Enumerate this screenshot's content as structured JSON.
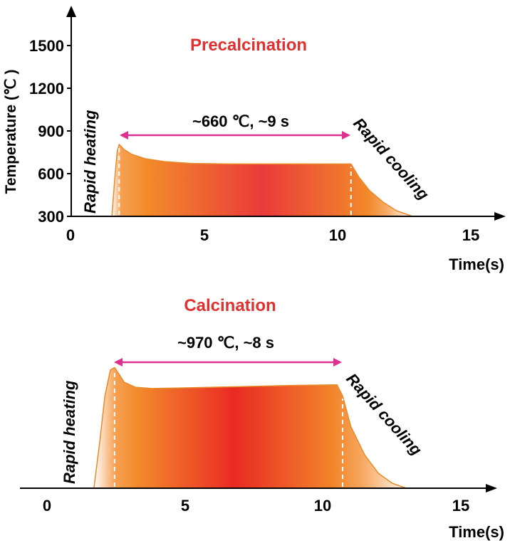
{
  "chart_data": [
    {
      "type": "area",
      "title": "Precalcination",
      "xlabel": "Time(s)",
      "ylabel": "Temperature (℃ )",
      "xlim": [
        0,
        16
      ],
      "ylim": [
        300,
        1700
      ],
      "x_ticks": [
        "0",
        "5",
        "10",
        "15"
      ],
      "y_ticks": [
        "300",
        "600",
        "900",
        "1200",
        "1500"
      ],
      "series": [
        {
          "x": [
            1.55,
            1.65,
            1.75,
            1.82,
            1.9,
            2.0,
            2.3,
            2.8,
            3.5,
            4.5,
            6,
            8,
            10,
            10.5,
            10.8,
            11.2,
            11.7,
            12.2,
            12.8
          ],
          "y": [
            300,
            550,
            760,
            805,
            790,
            770,
            735,
            705,
            685,
            672,
            668,
            668,
            668,
            668,
            575,
            480,
            400,
            340,
            300
          ]
        }
      ],
      "annotation": "~660 ℃, ~9 s",
      "phase_labels": [
        "Rapid heating",
        "Rapid cooling"
      ],
      "hold_start": 1.82,
      "hold_end": 10.5
    },
    {
      "type": "area",
      "title": "Calcination",
      "xlabel": "Time(s)",
      "xlim": [
        -1.0,
        16.5
      ],
      "ylim": [
        0,
        1
      ],
      "x_ticks": [
        "0",
        "5",
        "10",
        "15"
      ],
      "series": [
        {
          "x": [
            1.7,
            1.9,
            2.1,
            2.3,
            2.45,
            2.6,
            2.8,
            3.2,
            3.8,
            5,
            7,
            9,
            10.5,
            10.7,
            11.0,
            11.5,
            12.0,
            12.5,
            13.0
          ],
          "y": [
            0,
            0.35,
            0.75,
            0.96,
            0.98,
            0.93,
            0.86,
            0.82,
            0.81,
            0.815,
            0.825,
            0.835,
            0.84,
            0.75,
            0.5,
            0.27,
            0.12,
            0.04,
            0
          ]
        }
      ],
      "annotation": "~970 ℃, ~8 s",
      "phase_labels": [
        "Rapid heating",
        "Rapid cooling"
      ],
      "hold_start": 2.45,
      "hold_end": 10.7
    }
  ]
}
